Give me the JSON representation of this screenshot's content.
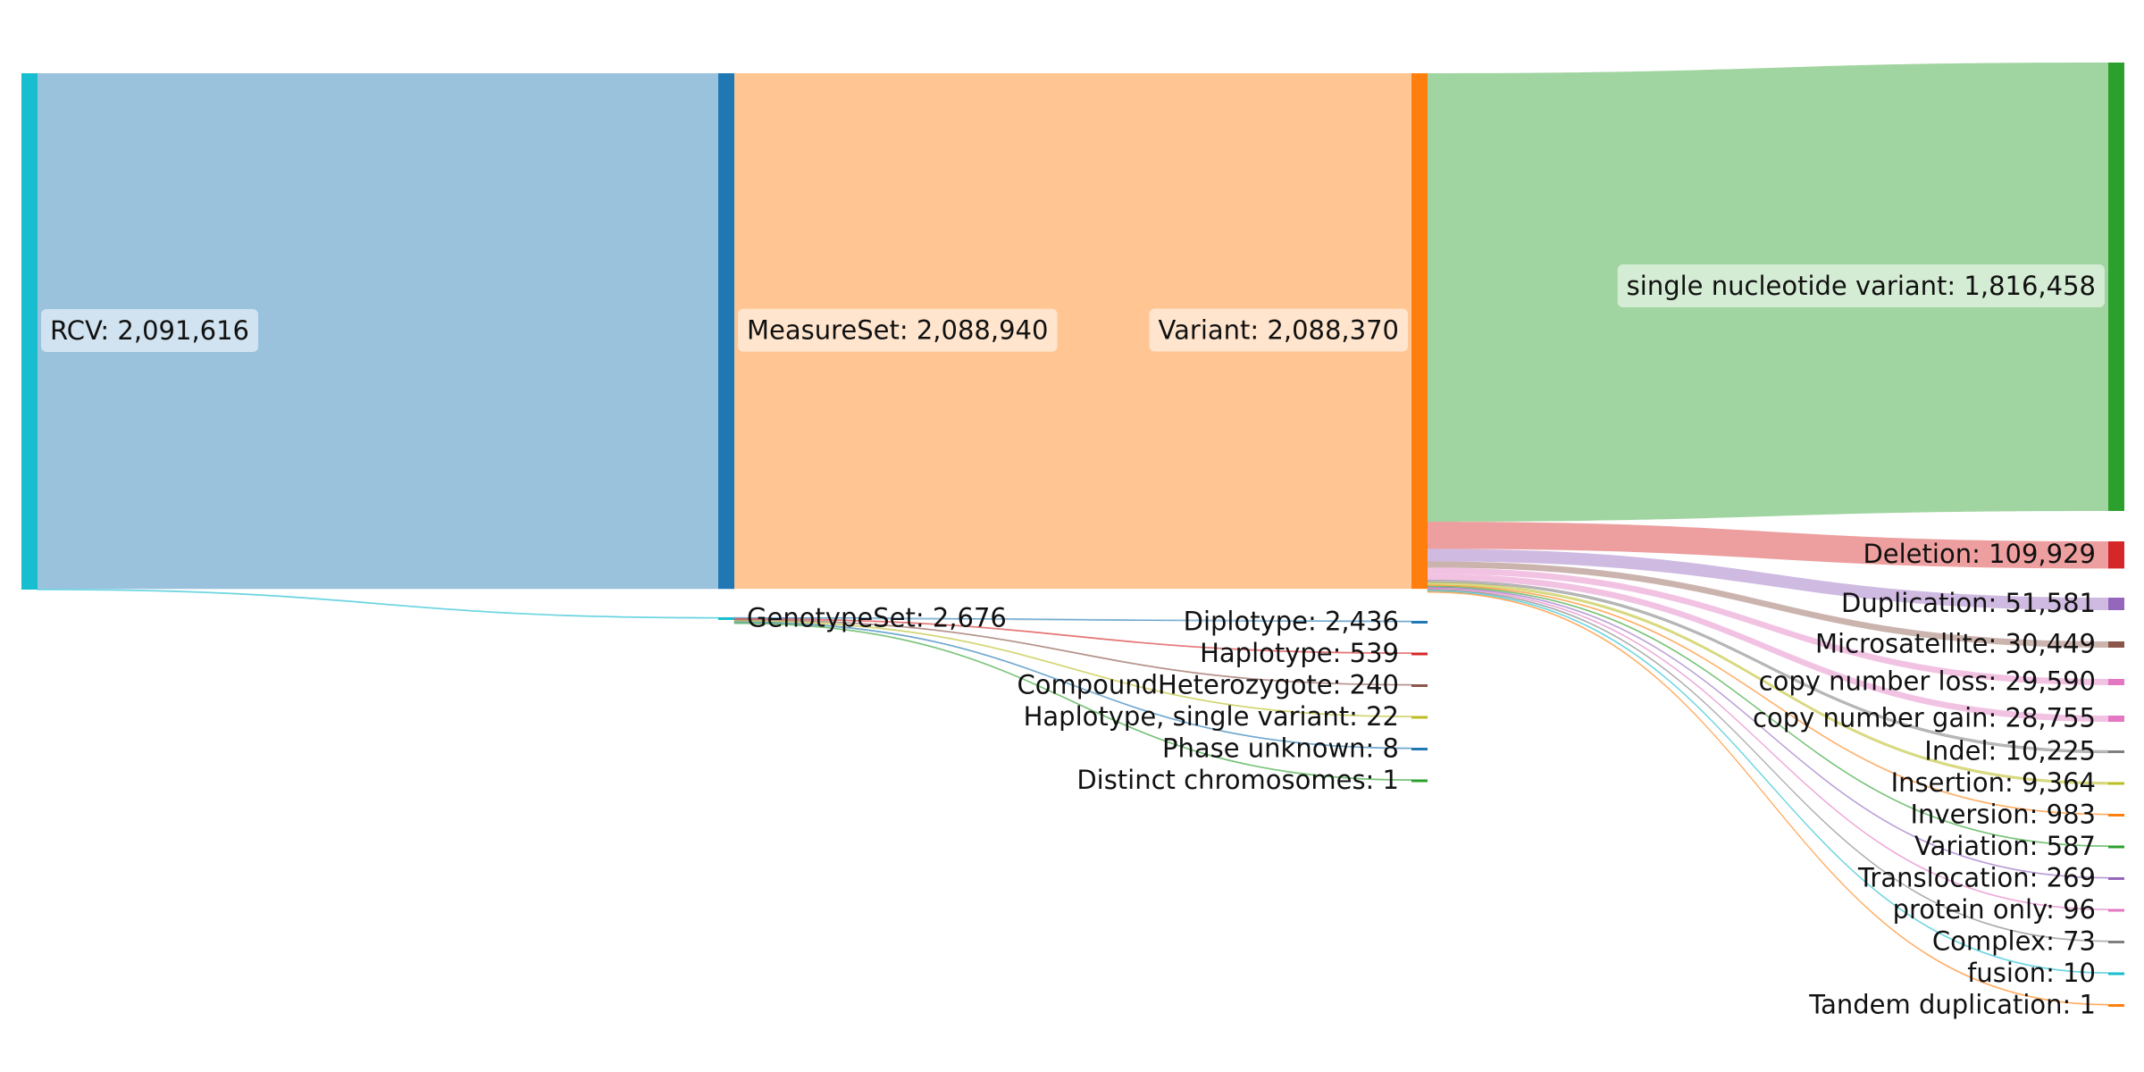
{
  "chart_data": {
    "type": "sankey",
    "title": "",
    "levels": [
      {
        "nodes": [
          {
            "id": "rcv",
            "label": "RCV: 2,091,616",
            "value": 2091616,
            "color": "#17becf",
            "label_box": true
          }
        ]
      },
      {
        "nodes": [
          {
            "id": "measureset",
            "label": "MeasureSet: 2,088,940",
            "value": 2088940,
            "color": "#1f77b4",
            "label_box": true
          },
          {
            "id": "genotypeset",
            "label": "GenotypeSet: 2,676",
            "value": 2676,
            "color": "#17becf"
          }
        ]
      },
      {
        "nodes": [
          {
            "id": "variant",
            "label": "Variant: 2,088,370",
            "value": 2088370,
            "color": "#ff7f0e",
            "label_box": true
          },
          {
            "id": "diplotype",
            "label": "Diplotype: 2,436",
            "value": 2436,
            "color": "#1f77b4"
          },
          {
            "id": "haplotype",
            "label": "Haplotype: 539",
            "value": 539,
            "color": "#d62728"
          },
          {
            "id": "compound",
            "label": "CompoundHeterozygote: 240",
            "value": 240,
            "color": "#8c564b"
          },
          {
            "id": "hap_single",
            "label": "Haplotype, single variant: 22",
            "value": 22,
            "color": "#bcbd22"
          },
          {
            "id": "phase_unknown",
            "label": "Phase unknown: 8",
            "value": 8,
            "color": "#1f77b4"
          },
          {
            "id": "distinct_chr",
            "label": "Distinct chromosomes: 1",
            "value": 1,
            "color": "#2ca02c"
          }
        ]
      },
      {
        "nodes": [
          {
            "id": "snv",
            "label": "single nucleotide variant: 1,816,458",
            "value": 1816458,
            "color": "#2ca02c",
            "label_box": true
          },
          {
            "id": "deletion",
            "label": "Deletion: 109,929",
            "value": 109929,
            "color": "#d62728"
          },
          {
            "id": "duplication",
            "label": "Duplication: 51,581",
            "value": 51581,
            "color": "#9467bd"
          },
          {
            "id": "microsat",
            "label": "Microsatellite: 30,449",
            "value": 30449,
            "color": "#8c564b"
          },
          {
            "id": "cnl",
            "label": "copy number loss: 29,590",
            "value": 29590,
            "color": "#e377c2"
          },
          {
            "id": "cng",
            "label": "copy number gain: 28,755",
            "value": 28755,
            "color": "#e377c2"
          },
          {
            "id": "indel",
            "label": "Indel: 10,225",
            "value": 10225,
            "color": "#7f7f7f"
          },
          {
            "id": "insertion",
            "label": "Insertion: 9,364",
            "value": 9364,
            "color": "#bcbd22"
          },
          {
            "id": "inversion",
            "label": "Inversion: 983",
            "value": 983,
            "color": "#ff7f0e"
          },
          {
            "id": "variation",
            "label": "Variation: 587",
            "value": 587,
            "color": "#2ca02c"
          },
          {
            "id": "translocation",
            "label": "Translocation: 269",
            "value": 269,
            "color": "#9467bd"
          },
          {
            "id": "protein_only",
            "label": "protein only: 96",
            "value": 96,
            "color": "#e377c2"
          },
          {
            "id": "complex",
            "label": "Complex: 73",
            "value": 73,
            "color": "#7f7f7f"
          },
          {
            "id": "fusion",
            "label": "fusion: 10",
            "value": 10,
            "color": "#17becf"
          },
          {
            "id": "tandem_dup",
            "label": "Tandem duplication: 1",
            "value": 1,
            "color": "#ff7f0e"
          }
        ]
      }
    ],
    "links": [
      {
        "source": "rcv",
        "target": "measureset",
        "value": 2088940
      },
      {
        "source": "rcv",
        "target": "genotypeset",
        "value": 2676
      },
      {
        "source": "measureset",
        "target": "variant",
        "value": 2088370
      },
      {
        "source": "genotypeset",
        "target": "diplotype",
        "value": 2436
      },
      {
        "source": "genotypeset",
        "target": "haplotype",
        "value": 539
      },
      {
        "source": "genotypeset",
        "target": "compound",
        "value": 240
      },
      {
        "source": "genotypeset",
        "target": "hap_single",
        "value": 22
      },
      {
        "source": "genotypeset",
        "target": "phase_unknown",
        "value": 8
      },
      {
        "source": "genotypeset",
        "target": "distinct_chr",
        "value": 1
      },
      {
        "source": "variant",
        "target": "snv",
        "value": 1816458
      },
      {
        "source": "variant",
        "target": "deletion",
        "value": 109929
      },
      {
        "source": "variant",
        "target": "duplication",
        "value": 51581
      },
      {
        "source": "variant",
        "target": "microsat",
        "value": 30449
      },
      {
        "source": "variant",
        "target": "cnl",
        "value": 29590
      },
      {
        "source": "variant",
        "target": "cng",
        "value": 28755
      },
      {
        "source": "variant",
        "target": "indel",
        "value": 10225
      },
      {
        "source": "variant",
        "target": "insertion",
        "value": 9364
      },
      {
        "source": "variant",
        "target": "inversion",
        "value": 983
      },
      {
        "source": "variant",
        "target": "variation",
        "value": 587
      },
      {
        "source": "variant",
        "target": "translocation",
        "value": 269
      },
      {
        "source": "variant",
        "target": "protein_only",
        "value": 96
      },
      {
        "source": "variant",
        "target": "complex",
        "value": 73
      },
      {
        "source": "variant",
        "target": "fusion",
        "value": 10
      },
      {
        "source": "variant",
        "target": "tandem_dup",
        "value": 1
      }
    ]
  }
}
